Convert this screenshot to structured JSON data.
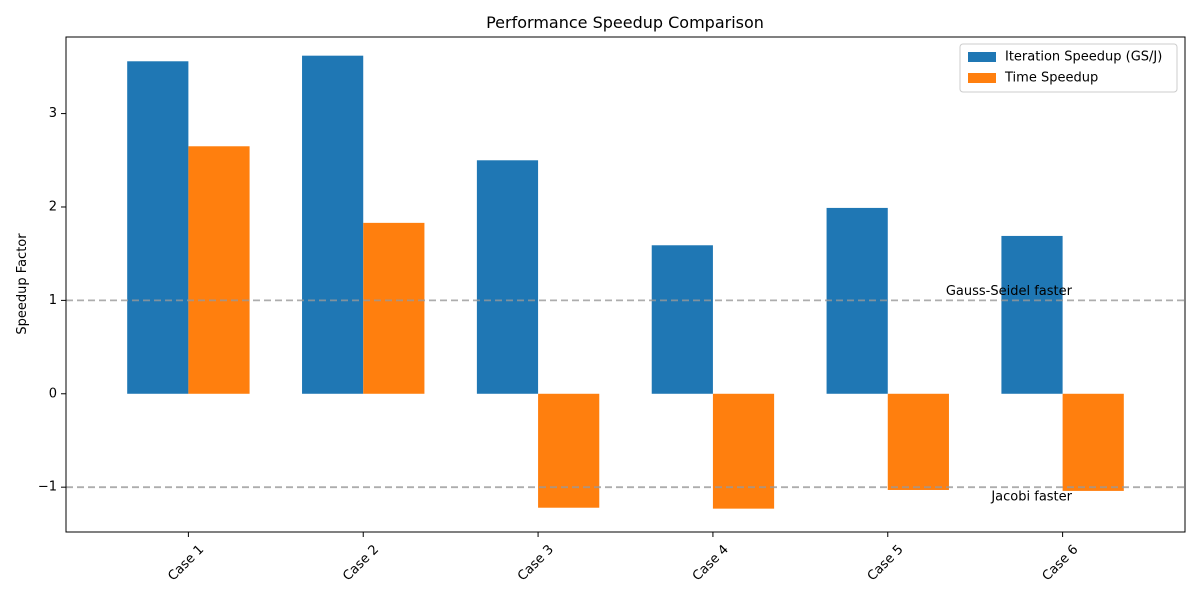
{
  "chart_data": {
    "type": "bar",
    "title": "Performance Speedup Comparison",
    "xlabel": "",
    "ylabel": "Speedup Factor",
    "categories": [
      "Case 1",
      "Case 2",
      "Case 3",
      "Case 4",
      "Case 5",
      "Case 6"
    ],
    "series": [
      {
        "name": "Iteration Speedup (GS/J)",
        "color": "#1f77b4",
        "values": [
          3.56,
          3.62,
          2.5,
          1.59,
          1.99,
          1.69
        ]
      },
      {
        "name": "Time Speedup",
        "color": "#ff7f0e",
        "values": [
          2.65,
          1.83,
          -1.22,
          -1.23,
          -1.03,
          -1.04
        ]
      }
    ],
    "ylim": [
      -1.48,
      3.82
    ],
    "yticks": [
      -1,
      0,
      1,
      2,
      3
    ],
    "ytick_labels": [
      "−1",
      "0",
      "1",
      "2",
      "3"
    ],
    "reference_lines": [
      {
        "y": 1,
        "label": "Gauss-Seidel faster",
        "color": "#999999",
        "style": "dashed"
      },
      {
        "y": -1,
        "label": "Jacobi faster",
        "color": "#999999",
        "style": "dashed"
      }
    ],
    "legend_position": "top-right",
    "grid": false
  }
}
